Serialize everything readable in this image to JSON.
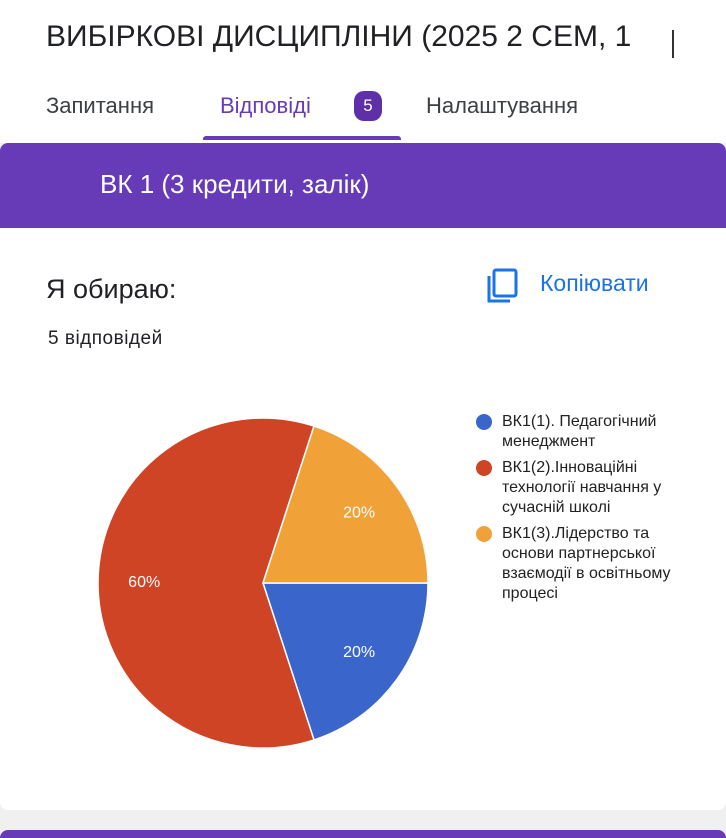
{
  "header": {
    "title": "ВИБІРКОВІ ДИСЦИПЛІНИ (2025 2 СЕМ, 1",
    "tabs": [
      "Запитання",
      "Відповіді",
      "Налаштування"
    ],
    "badge": "5"
  },
  "section": {
    "title": "ВК 1 (3 кредити, залік)"
  },
  "question": {
    "title": "Я обираю:",
    "copy": "Копіювати",
    "count": "5 відповідей"
  },
  "chart_data": {
    "type": "pie",
    "categories": [
      "ВК1(1). Педагогічний менеджмент",
      "ВК1(2).Інноваційні технології навчання у сучасній школі",
      "ВК1(3).Лідерство та основи партнерської взаємодії в освітньому процесі"
    ],
    "values": [
      20,
      60,
      20
    ],
    "value_labels": [
      "20%",
      "60%",
      "20%"
    ],
    "colors": [
      "#3a66cc",
      "#cf4424",
      "#f0a239"
    ]
  }
}
